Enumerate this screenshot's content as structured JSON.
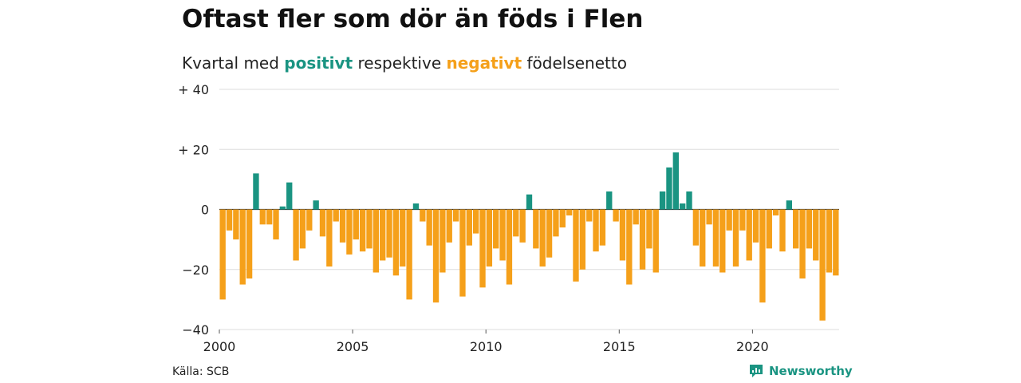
{
  "title": "Oftast fler som dör än föds i Flen",
  "subtitle": {
    "prefix": "Kvartal med",
    "positive": "positivt",
    "middle": "respektive",
    "negative": "negativt",
    "suffix": "födelsenetto"
  },
  "source": "Källa: SCB",
  "brand": {
    "name": "Newsworthy",
    "icon": "newsworthy-logo-icon"
  },
  "colors": {
    "positive": "#1a9482",
    "negative": "#f5a01a",
    "grid": "#dddddd"
  },
  "chart_data": {
    "type": "bar",
    "x_start": 2000,
    "periods_per_year": 4,
    "ylim": [
      -40,
      40
    ],
    "yticks": [
      {
        "value": 40,
        "label": "+ 40"
      },
      {
        "value": 20,
        "label": "+ 20"
      },
      {
        "value": 0,
        "label": "0"
      },
      {
        "value": -20,
        "label": "−20"
      },
      {
        "value": -40,
        "label": "−40"
      }
    ],
    "xticks": [
      {
        "value": 2000,
        "label": "2000"
      },
      {
        "value": 2005,
        "label": "2005"
      },
      {
        "value": 2010,
        "label": "2010"
      },
      {
        "value": 2015,
        "label": "2015"
      },
      {
        "value": 2020,
        "label": "2020"
      }
    ],
    "grid": true,
    "values": [
      -30,
      -7,
      -10,
      -25,
      -23,
      12,
      -5,
      -5,
      -10,
      1,
      9,
      -17,
      -13,
      -7,
      3,
      -9,
      -19,
      -4,
      -11,
      -15,
      -10,
      -14,
      -13,
      -21,
      -17,
      -16,
      -22,
      -19,
      -30,
      2,
      -4,
      -12,
      -31,
      -21,
      -11,
      -4,
      -29,
      -12,
      -8,
      -26,
      -19,
      -13,
      -17,
      -25,
      -9,
      -11,
      5,
      -13,
      -19,
      -16,
      -9,
      -6,
      -2,
      -24,
      -20,
      -4,
      -14,
      -12,
      6,
      -4,
      -17,
      -25,
      -5,
      -20,
      -13,
      -21,
      6,
      14,
      19,
      2,
      6,
      -12,
      -19,
      -5,
      -19,
      -21,
      -7,
      -19,
      -7,
      -17,
      -11,
      -31,
      -13,
      -2,
      -14,
      3,
      -13,
      -23,
      -13,
      -17,
      -37,
      -21,
      -22
    ]
  }
}
